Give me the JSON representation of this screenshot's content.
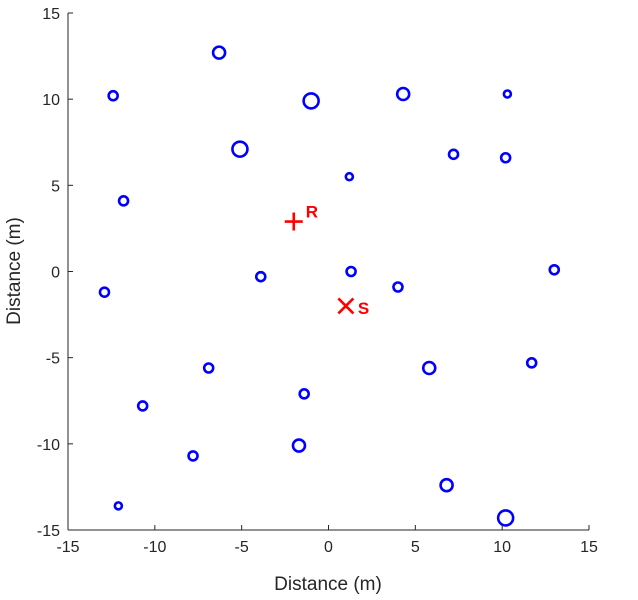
{
  "chart_data": {
    "type": "scatter",
    "xlabel": "Distance (m)",
    "ylabel": "Distance (m)",
    "xlim": [
      -15,
      15
    ],
    "ylim": [
      -15,
      15
    ],
    "x_ticks": [
      -15,
      -10,
      -5,
      0,
      5,
      10,
      15
    ],
    "y_ticks": [
      -15,
      -10,
      -5,
      0,
      5,
      10,
      15
    ],
    "x_tick_labels": [
      "-15",
      "-10",
      "-5",
      "0",
      "5",
      "10",
      "15"
    ],
    "y_tick_labels": [
      "-15",
      "-10",
      "-5",
      "0",
      "5",
      "10",
      "15"
    ],
    "grid": false,
    "scatterer_color": "#0000ff",
    "marker_color": "#ff0000",
    "scatterers": [
      {
        "x": -6.3,
        "y": 12.7,
        "size": 3
      },
      {
        "x": -12.4,
        "y": 10.2,
        "size": 2
      },
      {
        "x": -1.0,
        "y": 9.9,
        "size": 4
      },
      {
        "x": 4.3,
        "y": 10.3,
        "size": 3
      },
      {
        "x": 10.3,
        "y": 10.3,
        "size": 1
      },
      {
        "x": -5.1,
        "y": 7.1,
        "size": 4
      },
      {
        "x": 7.2,
        "y": 6.8,
        "size": 2
      },
      {
        "x": 10.2,
        "y": 6.6,
        "size": 2
      },
      {
        "x": 1.2,
        "y": 5.5,
        "size": 1
      },
      {
        "x": -11.8,
        "y": 4.1,
        "size": 2
      },
      {
        "x": -3.9,
        "y": -0.3,
        "size": 2
      },
      {
        "x": 1.3,
        "y": 0.0,
        "size": 2
      },
      {
        "x": 13.0,
        "y": 0.1,
        "size": 2
      },
      {
        "x": -12.9,
        "y": -1.2,
        "size": 2
      },
      {
        "x": 4.0,
        "y": -0.9,
        "size": 2
      },
      {
        "x": -6.9,
        "y": -5.6,
        "size": 2
      },
      {
        "x": 5.8,
        "y": -5.6,
        "size": 3
      },
      {
        "x": 11.7,
        "y": -5.3,
        "size": 2
      },
      {
        "x": -10.7,
        "y": -7.8,
        "size": 2
      },
      {
        "x": -1.4,
        "y": -7.1,
        "size": 2
      },
      {
        "x": -1.7,
        "y": -10.1,
        "size": 3
      },
      {
        "x": -7.8,
        "y": -10.7,
        "size": 2
      },
      {
        "x": 6.8,
        "y": -12.4,
        "size": 3
      },
      {
        "x": -12.1,
        "y": -13.6,
        "size": 1
      },
      {
        "x": 10.2,
        "y": -14.3,
        "size": 4
      }
    ],
    "markers": [
      {
        "label": "R",
        "x": -2.0,
        "y": 2.9,
        "shape": "plus"
      },
      {
        "label": "S",
        "x": 1.0,
        "y": -2.0,
        "shape": "x"
      }
    ]
  }
}
